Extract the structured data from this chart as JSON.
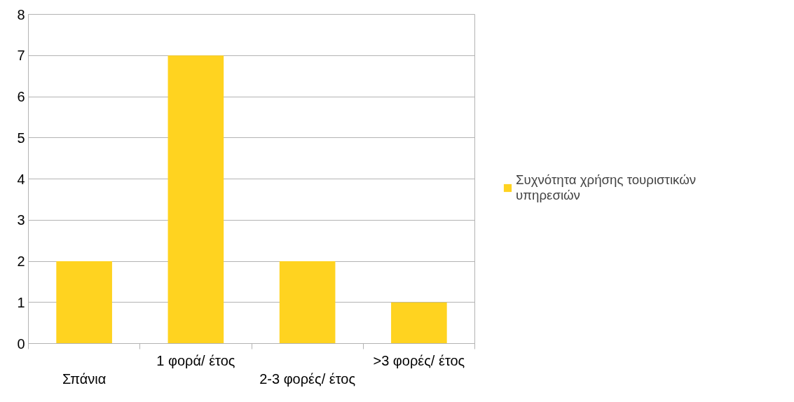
{
  "chart_data": {
    "type": "bar",
    "categories": [
      "Σπάνια",
      "1 φορά/ έτος",
      "2-3 φορές/ έτος",
      ">3 φορές/ έτος"
    ],
    "series": [
      {
        "name": "Συχνότητα χρήσης τουριστικών υπηρεσιών",
        "color": "#ffd320",
        "values": [
          2,
          7,
          2,
          1
        ]
      }
    ],
    "ylim": [
      0,
      8
    ],
    "yticks": [
      0,
      1,
      2,
      3,
      4,
      5,
      6,
      7,
      8
    ],
    "grid": "y",
    "legend": "right"
  }
}
